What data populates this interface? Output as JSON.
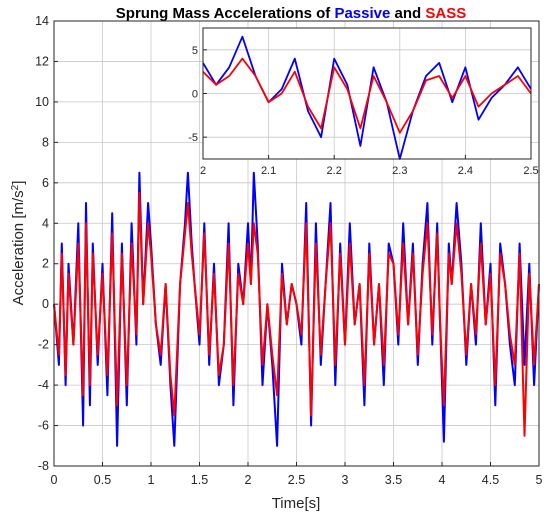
{
  "chart_data": [
    {
      "type": "line",
      "title_parts": [
        {
          "text": "Sprung Mass Accelerations of ",
          "color": "#000000"
        },
        {
          "text": "Passive",
          "color": "#0000ff"
        },
        {
          "text": " and ",
          "color": "#000000"
        },
        {
          "text": "SASS",
          "color": "#ff0000"
        }
      ],
      "xlabel": "Time[s]",
      "ylabel": "Acceleration [m/s²]",
      "xlim": [
        0,
        5
      ],
      "ylim": [
        -8,
        14
      ],
      "xticks": [
        0,
        0.5,
        1,
        1.5,
        2,
        2.5,
        3,
        3.5,
        4,
        4.5,
        5
      ],
      "xtick_labels": [
        "0",
        "0.5",
        "1",
        "1.5",
        "2",
        "2.5",
        "3",
        "3.5",
        "4",
        "4.5",
        "5"
      ],
      "yticks": [
        -8,
        -6,
        -4,
        -2,
        0,
        2,
        4,
        6,
        8,
        10,
        12,
        14
      ],
      "ytick_labels": [
        "-8",
        "-6",
        "-4",
        "-2",
        "0",
        "2",
        "4",
        "6",
        "8",
        "10",
        "12",
        "14"
      ],
      "grid": true,
      "series": [
        {
          "name": "Passive",
          "color": "#0000ff",
          "x": [
            0,
            0.05,
            0.08,
            0.12,
            0.15,
            0.2,
            0.25,
            0.3,
            0.33,
            0.37,
            0.4,
            0.45,
            0.5,
            0.55,
            0.6,
            0.65,
            0.7,
            0.75,
            0.8,
            0.85,
            0.88,
            0.92,
            0.97,
            1.0,
            1.05,
            1.1,
            1.15,
            1.2,
            1.24,
            1.3,
            1.35,
            1.38,
            1.42,
            1.45,
            1.5,
            1.55,
            1.6,
            1.65,
            1.7,
            1.75,
            1.8,
            1.85,
            1.9,
            1.95,
            2.0,
            2.03,
            2.06,
            2.1,
            2.15,
            2.2,
            2.25,
            2.3,
            2.35,
            2.4,
            2.45,
            2.5,
            2.55,
            2.6,
            2.65,
            2.7,
            2.75,
            2.8,
            2.85,
            2.9,
            2.95,
            3.0,
            3.05,
            3.1,
            3.15,
            3.2,
            3.25,
            3.3,
            3.35,
            3.4,
            3.45,
            3.5,
            3.55,
            3.6,
            3.65,
            3.7,
            3.75,
            3.8,
            3.85,
            3.9,
            3.95,
            3.98,
            4.02,
            4.07,
            4.1,
            4.15,
            4.2,
            4.25,
            4.3,
            4.35,
            4.4,
            4.45,
            4.5,
            4.55,
            4.6,
            4.65,
            4.7,
            4.75,
            4.8,
            4.85,
            4.9,
            4.95,
            5.0
          ],
          "y": [
            0,
            -3,
            3,
            -4,
            2,
            -2,
            4,
            -6,
            5,
            -5,
            3,
            -3,
            2,
            -4.5,
            4.5,
            -7,
            3,
            -5,
            4,
            -2,
            6.5,
            0,
            5,
            3,
            -1,
            -3,
            1,
            -4,
            -7,
            1,
            4,
            6.5,
            3,
            1,
            -2,
            4,
            -3,
            2,
            -4,
            -2,
            4,
            -5,
            2,
            0,
            4,
            1,
            6.5,
            3,
            -4,
            0,
            -3,
            -7,
            2,
            -1,
            1,
            0,
            -2,
            5,
            -6,
            4,
            -3,
            1,
            5,
            -4,
            3,
            -2,
            4,
            -1,
            1,
            -5,
            3,
            -2,
            1,
            -4,
            3,
            2,
            -2,
            4,
            -1,
            3,
            -3,
            2,
            5,
            -2,
            4,
            -1,
            -6.8,
            3,
            1,
            5,
            2,
            -3,
            1,
            -2,
            4,
            -1,
            2,
            -5,
            3,
            1,
            -2,
            -4,
            3,
            -3,
            2,
            -4,
            1
          ]
        },
        {
          "name": "SASS",
          "color": "#ff0000",
          "x": [
            0,
            0.05,
            0.08,
            0.12,
            0.15,
            0.2,
            0.25,
            0.3,
            0.33,
            0.37,
            0.4,
            0.45,
            0.5,
            0.55,
            0.6,
            0.65,
            0.7,
            0.75,
            0.8,
            0.85,
            0.88,
            0.92,
            0.97,
            1.0,
            1.05,
            1.1,
            1.15,
            1.2,
            1.24,
            1.3,
            1.35,
            1.38,
            1.42,
            1.45,
            1.5,
            1.55,
            1.6,
            1.65,
            1.7,
            1.75,
            1.8,
            1.85,
            1.9,
            1.95,
            2.0,
            2.03,
            2.06,
            2.1,
            2.15,
            2.2,
            2.25,
            2.3,
            2.35,
            2.4,
            2.45,
            2.5,
            2.55,
            2.6,
            2.65,
            2.7,
            2.75,
            2.8,
            2.85,
            2.9,
            2.95,
            3.0,
            3.05,
            3.1,
            3.15,
            3.2,
            3.25,
            3.3,
            3.35,
            3.4,
            3.45,
            3.5,
            3.55,
            3.6,
            3.65,
            3.7,
            3.75,
            3.8,
            3.85,
            3.9,
            3.95,
            3.98,
            4.02,
            4.07,
            4.1,
            4.15,
            4.2,
            4.25,
            4.3,
            4.35,
            4.4,
            4.45,
            4.5,
            4.55,
            4.6,
            4.65,
            4.7,
            4.75,
            4.8,
            4.85,
            4.9,
            4.95,
            5.0
          ],
          "y": [
            0,
            -2.5,
            2.5,
            -3.5,
            1.5,
            -2,
            3,
            -4.5,
            4,
            -4,
            2.5,
            -2.5,
            1.5,
            -3.5,
            3.5,
            -5,
            2.5,
            -4,
            3,
            -1.5,
            5.5,
            0,
            4,
            2.5,
            -1,
            -2.5,
            1,
            -3.5,
            -5.5,
            1,
            3.5,
            5,
            2.5,
            1,
            -1.5,
            3.5,
            -2.5,
            1.5,
            -3.5,
            -2,
            3,
            -4,
            1.5,
            0,
            3,
            1,
            4,
            2.5,
            -3,
            0,
            -2.5,
            -4.5,
            1.5,
            -1,
            1,
            0,
            -1.5,
            4,
            -5.5,
            3,
            -2.5,
            1,
            4,
            -3,
            2.5,
            -2,
            3,
            -1,
            1,
            -4,
            2.5,
            -2,
            1,
            -3,
            2.5,
            2,
            -1.5,
            3,
            -1,
            2.5,
            -2.5,
            1.5,
            4,
            -1.5,
            3.5,
            -1,
            -5,
            2.5,
            1,
            4,
            1.5,
            -2.5,
            1,
            -1.5,
            3,
            -1,
            1.5,
            -4,
            2.5,
            1,
            -1.5,
            -3,
            2.5,
            -6.5,
            1.5,
            -3,
            1
          ]
        }
      ]
    },
    {
      "type": "line",
      "xlim": [
        2,
        2.5
      ],
      "ylim": [
        -7.5,
        7.5
      ],
      "xticks": [
        2,
        2.1,
        2.2,
        2.3,
        2.4,
        2.5
      ],
      "xtick_labels": [
        "2",
        "2.1",
        "2.2",
        "2.3",
        "2.4",
        "2.5"
      ],
      "yticks": [
        -5,
        0,
        5
      ],
      "ytick_labels": [
        "-5",
        "0",
        "5"
      ],
      "grid": true,
      "series": [
        {
          "name": "Passive",
          "color": "#0000ff",
          "x": [
            2.0,
            2.02,
            2.04,
            2.06,
            2.08,
            2.1,
            2.12,
            2.14,
            2.16,
            2.18,
            2.2,
            2.22,
            2.24,
            2.26,
            2.28,
            2.3,
            2.32,
            2.34,
            2.36,
            2.38,
            2.4,
            2.42,
            2.44,
            2.46,
            2.48,
            2.5
          ],
          "y": [
            3.5,
            1,
            3,
            6.5,
            2,
            -1,
            0.5,
            4,
            -2,
            -5,
            4,
            1,
            -6,
            3,
            -1,
            -7.5,
            -2,
            2,
            3.5,
            -1,
            3,
            -3,
            -0.5,
            1,
            3,
            0.5
          ]
        },
        {
          "name": "SASS",
          "color": "#ff0000",
          "x": [
            2.0,
            2.02,
            2.04,
            2.06,
            2.08,
            2.1,
            2.12,
            2.14,
            2.16,
            2.18,
            2.2,
            2.22,
            2.24,
            2.26,
            2.28,
            2.3,
            2.32,
            2.34,
            2.36,
            2.38,
            2.4,
            2.42,
            2.44,
            2.46,
            2.48,
            2.5
          ],
          "y": [
            2.5,
            1,
            2,
            4,
            2,
            -1,
            0,
            2.5,
            -1.5,
            -4,
            3,
            0.5,
            -4,
            2,
            -1,
            -4.5,
            -2,
            1.5,
            2,
            -0.5,
            2,
            -1.5,
            0,
            1,
            2,
            0
          ]
        }
      ]
    }
  ]
}
